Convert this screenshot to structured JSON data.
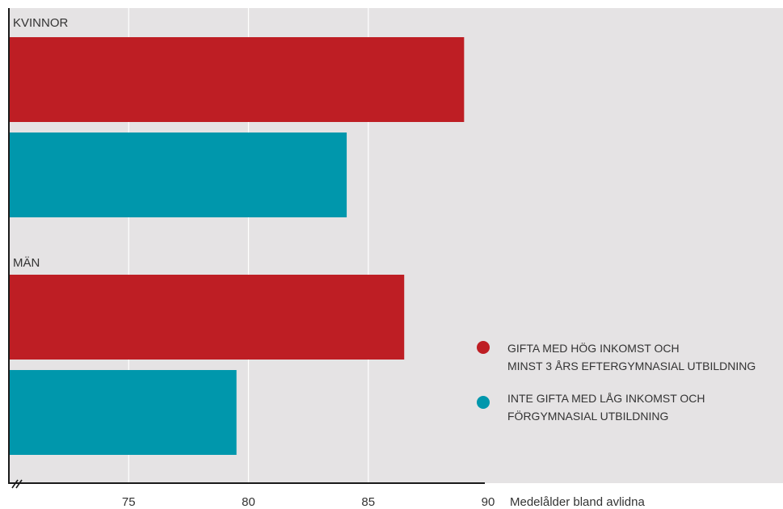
{
  "chart_data": {
    "type": "bar",
    "orientation": "horizontal",
    "groups": [
      "KVINNOR",
      "MÄN"
    ],
    "series": [
      {
        "name": "GIFTA MED HÖG INKOMST OCH MINST 3 ÅRS EFTERGYMNASIAL UTBILDNING",
        "color": "#be1e24",
        "values": [
          89.0,
          86.5
        ]
      },
      {
        "name": "INTE GIFTA MED LÅG INKOMST OCH FÖRGYMNASIAL UTBILDNING",
        "color": "#0097ac",
        "values": [
          84.1,
          79.5
        ]
      }
    ],
    "xlabel": "Medelålder bland avlidna",
    "xticks": [
      75,
      80,
      85,
      90
    ],
    "xlim": [
      70,
      90
    ],
    "axis_break": true,
    "grid": true,
    "legend_position": "right",
    "legend_lines": [
      [
        "GIFTA MED HÖG INKOMST OCH",
        "MINST 3 ÅRS EFTERGYMNASIAL UTBILDNING"
      ],
      [
        "INTE GIFTA MED LÅG INKOMST OCH",
        "FÖRGYMNASIAL UTBILDNING"
      ]
    ],
    "legend_marker_colors": [
      "#be1e24",
      "#0097ac"
    ]
  },
  "colors": {
    "background": "#e5e3e4",
    "grid": "#ffffff",
    "axis": "#1a1a1a"
  }
}
